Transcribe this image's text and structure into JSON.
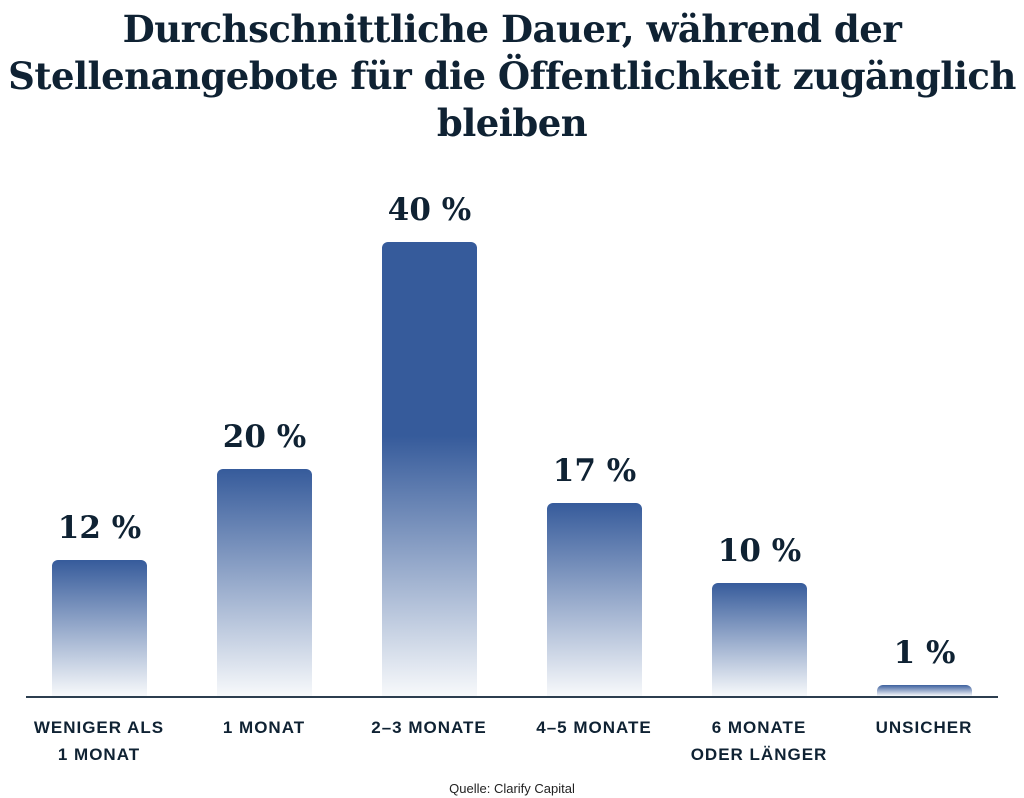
{
  "chart_data": {
    "type": "bar",
    "title": "Durchschnittliche Dauer, während der Stellenangebote für die Öffentlichkeit zugänglich bleiben",
    "categories": [
      "WENIGER ALS\n1 MONAT",
      "1 MONAT",
      "2–3 MONATE",
      "4–5 MONATE",
      "6 MONATE\nODER LÄNGER",
      "UNSICHER"
    ],
    "values": [
      12,
      20,
      40,
      17,
      10,
      1
    ],
    "value_labels": [
      "12 %",
      "20 %",
      "40 %",
      "17 %",
      "10 %",
      "1 %"
    ],
    "xlabel": "",
    "ylabel": "",
    "ylim": [
      0,
      40
    ],
    "grid": false,
    "colors": {
      "bar_top": "#365b9b",
      "bar_bottom": "#f7f9fb",
      "text": "#0f2233",
      "axis": "#2c3e4f"
    }
  },
  "source": "Quelle: Clarify Capital"
}
